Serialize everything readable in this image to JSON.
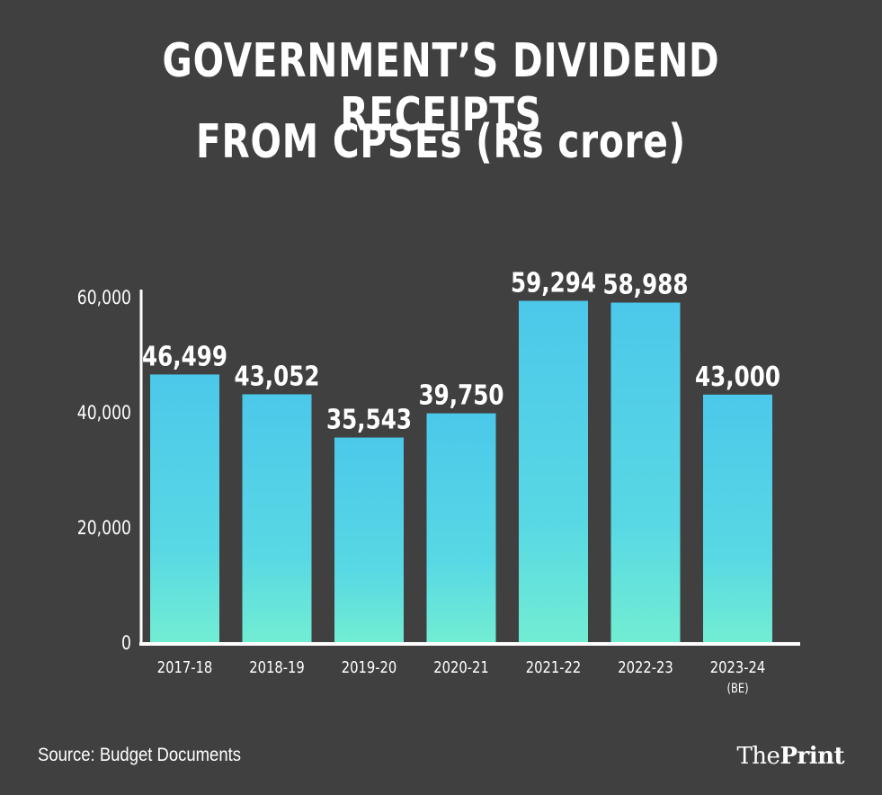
{
  "title_line1": "GOVERNMENT’S DIVIDEND RECEIPTS",
  "title_line2": "FROM CPSEs (Rs crore)",
  "source": "Source: Budget Documents",
  "brand": {
    "prefix": "The",
    "name": "Print"
  },
  "colors": {
    "background": "#404040",
    "bar_top": "#4CC8EA",
    "bar_bottom": "#72EDD3",
    "text": "#FFFFFF"
  },
  "chart_data": {
    "type": "bar",
    "title": "GOVERNMENT’S DIVIDEND RECEIPTS FROM CPSEs (Rs crore)",
    "categories": [
      "2017-18",
      "2018-19",
      "2019-20",
      "2020-21",
      "2021-22",
      "2022-23",
      "2023-24"
    ],
    "category_notes": [
      "",
      "",
      "",
      "",
      "",
      "",
      "(BE)"
    ],
    "values": [
      46499,
      43052,
      35543,
      39750,
      59294,
      58988,
      43000
    ],
    "value_labels": [
      "46,499",
      "43,052",
      "35,543",
      "39,750",
      "59,294",
      "58,988",
      "43,000"
    ],
    "yticks": [
      0,
      20000,
      40000,
      60000
    ],
    "ytick_labels": [
      "0",
      "20,000",
      "40,000",
      "60,000"
    ],
    "ylim": [
      0,
      60000
    ],
    "xlabel": "",
    "ylabel": "",
    "grid": false
  }
}
